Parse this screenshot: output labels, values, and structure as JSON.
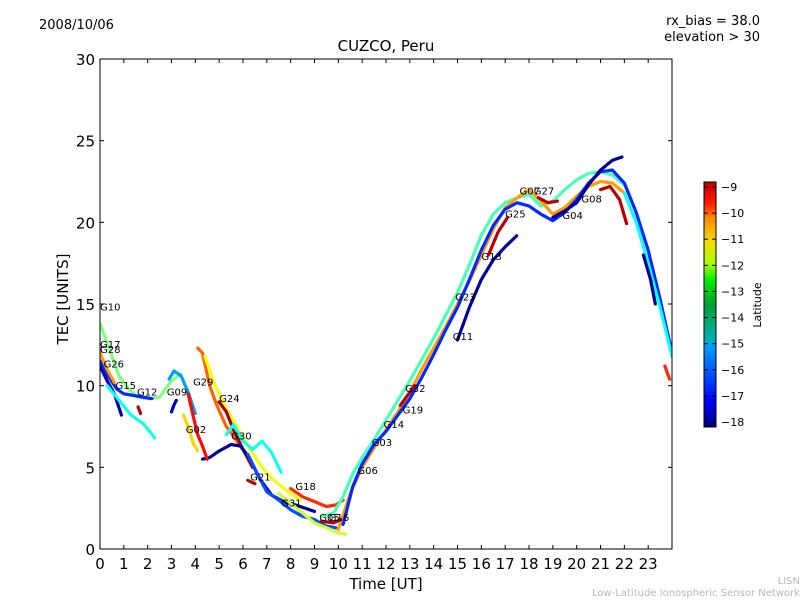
{
  "header": {
    "date": "2008/10/06",
    "rx_bias": "rx_bias = 38.0",
    "elevation": "elevation > 30"
  },
  "footer": {
    "credit_short": "LISN",
    "credit_long": "Low-Latitude Ionospheric Sensor Network"
  },
  "chart_data": {
    "type": "scatter",
    "title": "CUZCO, Peru",
    "xlabel": "Time [UT]",
    "ylabel": "TEC [UNITS]",
    "xlim": [
      0,
      24
    ],
    "ylim": [
      0,
      30
    ],
    "xticks": [
      0,
      1,
      2,
      3,
      4,
      5,
      6,
      7,
      8,
      9,
      10,
      11,
      12,
      13,
      14,
      15,
      16,
      17,
      18,
      19,
      20,
      21,
      22,
      23
    ],
    "yticks": [
      0,
      5,
      10,
      15,
      20,
      25,
      30
    ],
    "grid": false,
    "colorbar": {
      "label": "Latitude",
      "range": [
        -18,
        -9
      ],
      "ticks": [
        "−9",
        "−10",
        "−11",
        "−12",
        "−13",
        "−14",
        "−15",
        "−16",
        "−17",
        "−18"
      ],
      "colormap": "jet",
      "placement": "right"
    },
    "satellite_labels": [
      {
        "name": "G10",
        "x": 0.0,
        "y": 14.6
      },
      {
        "name": "G17",
        "x": 0.0,
        "y": 12.3
      },
      {
        "name": "G28",
        "x": 0.0,
        "y": 12.0
      },
      {
        "name": "G26",
        "x": 0.15,
        "y": 11.1
      },
      {
        "name": "G15",
        "x": 0.65,
        "y": 9.8
      },
      {
        "name": "G12",
        "x": 1.55,
        "y": 9.4
      },
      {
        "name": "G09",
        "x": 2.8,
        "y": 9.4
      },
      {
        "name": "G29",
        "x": 3.9,
        "y": 10.0
      },
      {
        "name": "G24",
        "x": 5.0,
        "y": 9.0
      },
      {
        "name": "G02",
        "x": 3.6,
        "y": 7.1
      },
      {
        "name": "G30",
        "x": 5.5,
        "y": 6.7
      },
      {
        "name": "G21",
        "x": 6.3,
        "y": 4.2
      },
      {
        "name": "G18",
        "x": 8.2,
        "y": 3.6
      },
      {
        "name": "G31",
        "x": 7.6,
        "y": 2.6
      },
      {
        "name": "G05",
        "x": 9.2,
        "y": 1.7
      },
      {
        "name": "G16",
        "x": 9.6,
        "y": 1.7
      },
      {
        "name": "G06",
        "x": 10.8,
        "y": 4.6
      },
      {
        "name": "G03",
        "x": 11.4,
        "y": 6.3
      },
      {
        "name": "G14",
        "x": 11.9,
        "y": 7.4
      },
      {
        "name": "G19",
        "x": 12.7,
        "y": 8.3
      },
      {
        "name": "G32",
        "x": 12.8,
        "y": 9.6
      },
      {
        "name": "G11",
        "x": 14.8,
        "y": 12.8
      },
      {
        "name": "G23",
        "x": 14.9,
        "y": 15.2
      },
      {
        "name": "G13",
        "x": 16.0,
        "y": 17.7
      },
      {
        "name": "G25",
        "x": 17.0,
        "y": 20.3
      },
      {
        "name": "G07",
        "x": 17.6,
        "y": 21.7
      },
      {
        "name": "G27",
        "x": 18.2,
        "y": 21.7
      },
      {
        "name": "G04",
        "x": 19.4,
        "y": 20.2
      },
      {
        "name": "G08",
        "x": 20.2,
        "y": 21.2
      }
    ],
    "series": [
      {
        "name": "trace-a",
        "lat": -13.5,
        "x": [
          0,
          0.4,
          0.8,
          1.2,
          1.6,
          2.0,
          2.5,
          3.0,
          3.4
        ],
        "y": [
          13.8,
          12.2,
          10.6,
          9.8,
          9.3,
          9.2,
          9.3,
          10.3,
          10.7
        ]
      },
      {
        "name": "trace-b",
        "lat": -16.5,
        "x": [
          0,
          0.3,
          0.7,
          1.0,
          1.4,
          1.8,
          2.2
        ],
        "y": [
          11.5,
          10.7,
          9.8,
          9.5,
          9.4,
          9.3,
          9.2
        ]
      },
      {
        "name": "trace-c",
        "lat": -17.5,
        "x": [
          0,
          0.3,
          0.6,
          0.9
        ],
        "y": [
          11.2,
          10.3,
          9.5,
          8.2
        ]
      },
      {
        "name": "trace-d",
        "lat": -14.5,
        "x": [
          0.3,
          0.8,
          1.3,
          1.8,
          2.3
        ],
        "y": [
          10.0,
          9.1,
          8.2,
          7.7,
          6.8
        ]
      },
      {
        "name": "trace-e",
        "lat": -11.5,
        "x": [
          0,
          0.3,
          0.6
        ],
        "y": [
          12.0,
          11.0,
          10.2
        ]
      },
      {
        "name": "trace-f",
        "lat": -9.5,
        "x": [
          1.6,
          1.7
        ],
        "y": [
          8.7,
          8.3
        ]
      },
      {
        "name": "trace-g",
        "lat": -11.0,
        "x": [
          4.1,
          4.3,
          4.6,
          4.9,
          5.3,
          5.8,
          6.3
        ],
        "y": [
          12.3,
          12.0,
          10.0,
          8.8,
          7.5,
          6.5,
          5.5
        ]
      },
      {
        "name": "trace-h",
        "lat": -12.5,
        "x": [
          4.4,
          4.8,
          5.3,
          5.8,
          6.3,
          6.8,
          7.3,
          7.9,
          8.4
        ],
        "y": [
          11.8,
          10.1,
          8.6,
          7.3,
          6.1,
          5.0,
          4.2,
          3.5,
          3.0
        ]
      },
      {
        "name": "trace-i",
        "lat": -9.3,
        "x": [
          5.0,
          5.3,
          5.6,
          6.0,
          6.4
        ],
        "y": [
          9.0,
          8.4,
          7.3,
          6.1,
          5.0
        ]
      },
      {
        "name": "trace-j",
        "lat": -17.8,
        "x": [
          4.3,
          4.6,
          5.0,
          5.5,
          5.9,
          6.3,
          6.7,
          7.2,
          7.7,
          8.2,
          8.6,
          9.0
        ],
        "y": [
          5.5,
          5.6,
          6.0,
          6.4,
          6.3,
          5.5,
          4.3,
          3.3,
          2.9,
          2.7,
          2.5,
          2.3
        ]
      },
      {
        "name": "trace-k",
        "lat": -14.5,
        "x": [
          5.3,
          5.6,
          6.0,
          6.4,
          6.8,
          7.2,
          7.6
        ],
        "y": [
          7.0,
          7.6,
          6.6,
          6.1,
          6.6,
          5.9,
          4.7
        ]
      },
      {
        "name": "trace-l",
        "lat": -16.2,
        "x": [
          6.2,
          6.6,
          7.0,
          7.5,
          8.0,
          8.5,
          9.0,
          9.5,
          9.9
        ],
        "y": [
          5.8,
          4.6,
          3.5,
          3.0,
          2.4,
          2.0,
          1.8,
          1.4,
          1.3
        ]
      },
      {
        "name": "trace-m",
        "lat": -12.8,
        "x": [
          7.5,
          8.0,
          8.5,
          9.0,
          9.5,
          10.0,
          10.3
        ],
        "y": [
          3.4,
          2.8,
          2.2,
          1.6,
          1.3,
          1.0,
          0.9
        ]
      },
      {
        "name": "trace-n",
        "lat": -10.5,
        "x": [
          8.0,
          8.5,
          9.0,
          9.5,
          9.9,
          10.2
        ],
        "y": [
          3.7,
          3.2,
          2.9,
          2.6,
          2.7,
          3.0
        ]
      },
      {
        "name": "trace-o",
        "lat": -14.0,
        "x": [
          9.3,
          9.8,
          10.2,
          10.6,
          11.0,
          11.5,
          12.0,
          12.5,
          13.0,
          13.5,
          14.0,
          14.5,
          15.0,
          15.5,
          16.0,
          16.5,
          17.0,
          17.5,
          18.0,
          18.5,
          19.0,
          19.5,
          20.0,
          20.5,
          21.0,
          21.5,
          22.0
        ],
        "y": [
          2.0,
          2.2,
          3.2,
          4.6,
          5.6,
          6.7,
          7.9,
          9.1,
          10.3,
          11.6,
          12.9,
          14.3,
          15.7,
          17.4,
          19.2,
          20.5,
          21.2,
          21.5,
          21.7,
          21.0,
          21.3,
          22.0,
          22.6,
          23.0,
          23.1,
          22.9,
          22.3
        ]
      },
      {
        "name": "trace-p",
        "lat": -11.5,
        "x": [
          10.0,
          10.5,
          11.0,
          11.5,
          12.0,
          12.5,
          13.0,
          13.5,
          14.0,
          14.5,
          15.0,
          15.5,
          16.0,
          16.5,
          17.0,
          17.5,
          18.0,
          18.5,
          19.0,
          19.5,
          20.0,
          20.5,
          21.0,
          21.5,
          22.0
        ],
        "y": [
          1.2,
          3.4,
          5.0,
          6.2,
          7.3,
          8.4,
          9.6,
          11.0,
          12.3,
          13.6,
          15.0,
          16.4,
          18.0,
          19.6,
          20.9,
          21.5,
          22.0,
          21.3,
          20.5,
          20.9,
          21.6,
          22.2,
          22.5,
          22.4,
          21.8
        ]
      },
      {
        "name": "trace-q",
        "lat": -16.5,
        "x": [
          10.2,
          10.6,
          11.0,
          11.5,
          12.0,
          12.5,
          13.0,
          13.5,
          14.0,
          14.5,
          15.0,
          15.5,
          16.0,
          16.5,
          17.0,
          17.5,
          18.0,
          18.5,
          19.0,
          19.5,
          20.0,
          20.5,
          21.0,
          21.5,
          22.0,
          22.5,
          23.0,
          23.5,
          24.0
        ],
        "y": [
          1.5,
          3.8,
          5.2,
          6.4,
          7.2,
          8.2,
          9.2,
          10.5,
          11.9,
          13.4,
          14.8,
          16.5,
          18.3,
          19.8,
          20.8,
          21.2,
          21.0,
          20.5,
          20.1,
          20.6,
          21.4,
          22.4,
          23.1,
          23.2,
          22.4,
          20.6,
          18.3,
          15.3,
          12.0
        ]
      },
      {
        "name": "trace-r",
        "lat": -17.8,
        "x": [
          15.0,
          15.5,
          16.0,
          16.5,
          17.0,
          17.5
        ],
        "y": [
          12.8,
          14.8,
          16.5,
          17.7,
          18.5,
          19.2
        ]
      },
      {
        "name": "trace-s",
        "lat": -17.8,
        "x": [
          19.0,
          19.5,
          20.0,
          20.5,
          21.0,
          21.5,
          21.9
        ],
        "y": [
          20.3,
          20.7,
          21.2,
          22.3,
          23.2,
          23.8,
          24.0
        ]
      },
      {
        "name": "trace-t",
        "lat": -9.5,
        "x": [
          21.0,
          21.4,
          21.8,
          22.1
        ],
        "y": [
          22.0,
          22.2,
          21.4,
          19.9
        ]
      },
      {
        "name": "trace-u",
        "lat": -14.5,
        "x": [
          22.0,
          22.5,
          23.0,
          23.5,
          24.0
        ],
        "y": [
          21.8,
          20.0,
          17.5,
          14.8,
          11.8
        ]
      },
      {
        "name": "trace-v",
        "lat": -17.8,
        "x": [
          22.8,
          23.1,
          23.3
        ],
        "y": [
          18.0,
          16.5,
          15.0
        ]
      },
      {
        "name": "trace-w",
        "lat": -10.5,
        "x": [
          23.7,
          23.9
        ],
        "y": [
          11.2,
          10.4
        ]
      },
      {
        "name": "trace-x",
        "lat": -9.5,
        "x": [
          16.3,
          16.7,
          17.1
        ],
        "y": [
          18.0,
          19.4,
          20.3
        ]
      },
      {
        "name": "trace-y",
        "lat": -9.5,
        "x": [
          12.6,
          12.9,
          13.2
        ],
        "y": [
          8.8,
          9.4,
          10.0
        ]
      },
      {
        "name": "trace-z",
        "lat": -9.5,
        "x": [
          6.2,
          6.5
        ],
        "y": [
          4.2,
          4.0
        ]
      },
      {
        "name": "trace-aa",
        "lat": -9.5,
        "x": [
          9.3,
          9.8,
          10.1
        ],
        "y": [
          1.7,
          1.6,
          1.8
        ]
      },
      {
        "name": "trace-ab",
        "lat": -9.5,
        "x": [
          18.4,
          18.8,
          19.2
        ],
        "y": [
          21.5,
          21.2,
          21.3
        ]
      },
      {
        "name": "trace-ac",
        "lat": -15.5,
        "x": [
          2.9,
          3.1,
          3.4,
          3.7,
          4.0
        ],
        "y": [
          10.4,
          10.9,
          10.6,
          9.6,
          8.3
        ]
      },
      {
        "name": "trace-ad",
        "lat": -10.2,
        "x": [
          3.7,
          3.9,
          4.1,
          4.3,
          4.5
        ],
        "y": [
          9.5,
          8.2,
          7.0,
          6.3,
          5.5
        ]
      },
      {
        "name": "trace-ae",
        "lat": -17.5,
        "x": [
          3.0,
          3.1,
          3.2
        ],
        "y": [
          8.4,
          8.8,
          9.1
        ]
      },
      {
        "name": "trace-af",
        "lat": -12.0,
        "x": [
          3.5,
          3.7,
          3.9,
          4.1
        ],
        "y": [
          8.2,
          7.5,
          6.5,
          6.0
        ]
      }
    ]
  }
}
